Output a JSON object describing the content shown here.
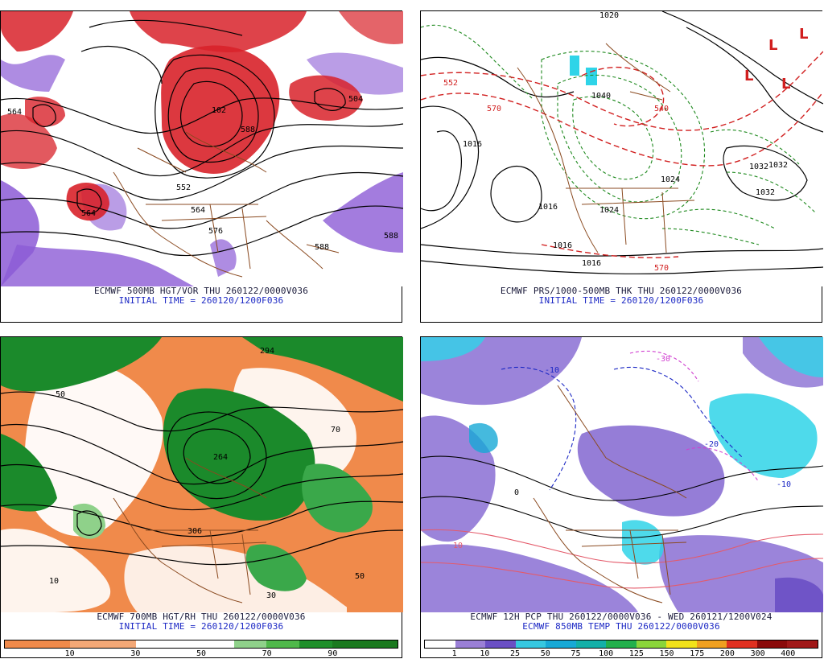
{
  "panels": [
    {
      "title": "ECMWF 500MB HGT/VOR THU 260122/0000V036",
      "subtitle": "INITIAL TIME = 260120/1200F036",
      "contour_labels": [
        "564",
        "552",
        "564",
        "576",
        "588",
        "102",
        "588",
        "504",
        "564",
        "588"
      ]
    },
    {
      "title": "ECMWF PRS/1000-500MB THK THU 260122/0000V036",
      "subtitle": "INITIAL TIME = 260120/1200F036",
      "contour_labels": [
        "1016",
        "1032",
        "1032",
        "1016",
        "1024",
        "1016",
        "1016",
        "1040",
        "552",
        "570",
        "540",
        "570",
        "1024",
        "1032",
        "1020"
      ],
      "high_low_marks": [
        "L",
        "L",
        "L",
        "L"
      ]
    },
    {
      "title": "ECMWF 700MB HGT/RH THU 260122/0000V036",
      "subtitle": "INITIAL TIME = 260120/1200F036",
      "contour_labels": [
        "264",
        "294",
        "306",
        "50",
        "70",
        "10",
        "30",
        "50"
      ],
      "colorbar_labels": [
        "10",
        "30",
        "50",
        "70",
        "90"
      ],
      "colorbar_colors": [
        "#f08a4b",
        "#f08a4b",
        "#f3a877",
        "#f3a877",
        "#ffffff",
        "#ffffff",
        "#ffffff",
        "#8fd18a",
        "#4fb84a",
        "#1f8f2a",
        "#1b7a1f",
        "#1b7a1f"
      ]
    },
    {
      "title": "ECMWF 12H PCP THU 260122/0000V036 - WED 260121/1200V024",
      "subtitle": "ECMWF 850MB TEMP THU 260122/0000V036",
      "contour_labels": [
        "-10",
        "-20",
        "0",
        "10",
        "-30",
        "-10"
      ],
      "colorbar_labels": [
        "1",
        "10",
        "25",
        "50",
        "75",
        "100",
        "125",
        "150",
        "175",
        "200",
        "300",
        "400"
      ],
      "colorbar_colors": [
        "#ffffff",
        "#9a7fd6",
        "#6a4fc4",
        "#36c8e0",
        "#17a9d6",
        "#13b0a8",
        "#22b04c",
        "#8ad53a",
        "#f2e21a",
        "#f0a020",
        "#e03020",
        "#8a0a0a",
        "#a01818"
      ]
    }
  ],
  "colors": {
    "red_vort": "#d8222a",
    "purple_vort": "#8c5bd6",
    "rh_green": "#1b8a2b",
    "rh_orange": "#f08a4b",
    "pcp_purple": "#8a6fd3",
    "pcp_cyan": "#2fd4e8",
    "borders": "#8a4a20",
    "height_lines": "#000000",
    "thickness_dash": "#d11f1f",
    "pressure_dash": "#1f8a1f"
  }
}
